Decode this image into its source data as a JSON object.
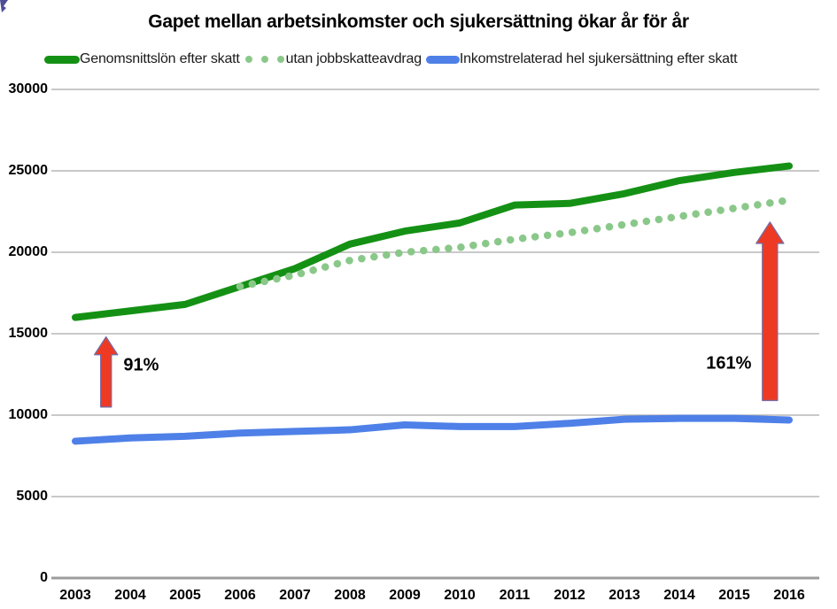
{
  "title": "Gapet mellan arbetsinkomster och sjukersättning ökar år för år",
  "legend": [
    {
      "label": "Genomsnittslön efter skatt",
      "swatch": "solid-green-line"
    },
    {
      "label": "utan jobbskatteavdrag",
      "swatch": "dotted-green-line"
    },
    {
      "label": "Inkomstrelaterad hel sjukersättning efter skatt",
      "swatch": "solid-blue-line"
    }
  ],
  "chart_data": {
    "type": "line",
    "title": "Gapet mellan arbetsinkomster och sjukersättning ökar år för år",
    "x": [
      2003,
      2004,
      2005,
      2006,
      2007,
      2008,
      2009,
      2010,
      2011,
      2012,
      2013,
      2014,
      2015,
      2016
    ],
    "series": [
      {
        "name": "Genomsnittslön efter skatt",
        "style": "solid",
        "color": "#149114",
        "width": 8,
        "values": [
          16000,
          16400,
          16800,
          17900,
          19000,
          20500,
          21300,
          21800,
          22900,
          23000,
          23600,
          24400,
          24900,
          25300
        ]
      },
      {
        "name": "utan jobbskatteavdrag",
        "style": "dotted",
        "color": "#8ac88a",
        "width": 8,
        "values": [
          null,
          null,
          null,
          17900,
          18600,
          19500,
          20000,
          20300,
          20800,
          21200,
          21700,
          22200,
          22700,
          23200
        ]
      },
      {
        "name": "Inkomstrelaterad hel sjukersättning efter skatt",
        "style": "solid",
        "color": "#4e80e8",
        "width": 8,
        "values": [
          8400,
          8600,
          8700,
          8900,
          9000,
          9100,
          9400,
          9300,
          9300,
          9500,
          9750,
          9800,
          9800,
          9700
        ]
      }
    ],
    "xlabel": "",
    "ylabel": "",
    "ylim": [
      0,
      30000
    ],
    "yticks": [
      0,
      5000,
      10000,
      15000,
      20000,
      25000,
      30000
    ],
    "grid": true,
    "legend_position": "top",
    "annotations": [
      {
        "label": "91%",
        "arrow_x_year": 2003.56,
        "arrow_from_value": 10500,
        "arrow_to_value": 14800,
        "shaft_width": 12,
        "head_width": 26,
        "head_height": 20,
        "label_x_year": 2004.2,
        "label_y_value": 13050
      },
      {
        "label": "161%",
        "arrow_x_year": 2015.65,
        "arrow_from_value": 10900,
        "arrow_to_value": 21850,
        "shaft_width": 17,
        "head_width": 31,
        "head_height": 24,
        "label_x_year": 2014.9,
        "label_y_value": 13150
      }
    ],
    "colors": {
      "arrow_red": "#ee3a22",
      "arrow_outline": "#7a6aa0",
      "grid": "#a9a9a9",
      "axis": "#9c9c9c",
      "text": "#000000"
    }
  }
}
